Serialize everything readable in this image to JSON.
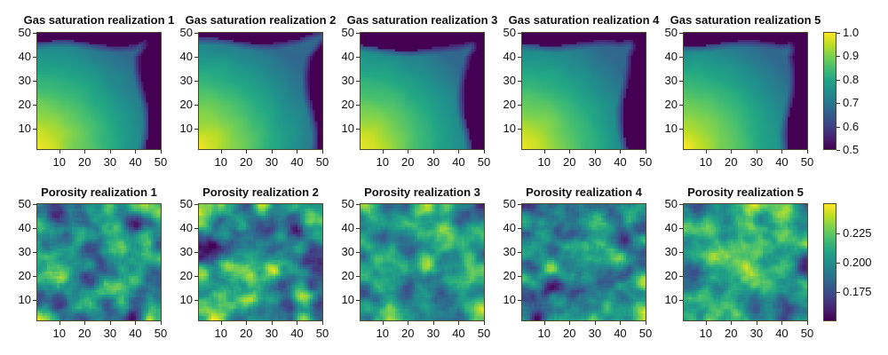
{
  "chart_data": [
    {
      "type": "heatmap",
      "row": "gas_saturation",
      "titles": [
        "Gas saturation realization 1",
        "Gas saturation realization 2",
        "Gas saturation realization 3",
        "Gas saturation realization 4",
        "Gas saturation realization 5"
      ],
      "x_ticks": [
        10,
        20,
        30,
        40,
        50
      ],
      "y_ticks": [
        10,
        20,
        30,
        40,
        50
      ],
      "xlim": [
        1,
        50
      ],
      "ylim": [
        1,
        50
      ],
      "grid_size": [
        50,
        50
      ],
      "colormap": "viridis",
      "colorbar": {
        "range": [
          0.5,
          1.0
        ],
        "ticks": [
          "0.5",
          "0.6",
          "0.7",
          "0.8",
          "0.9",
          "1.0"
        ],
        "tick_values": [
          0.5,
          0.6,
          0.7,
          0.8,
          0.9,
          1.0
        ]
      },
      "front_extent": [
        {
          "top": 46,
          "right": 44
        },
        {
          "top": 47,
          "right": 47
        },
        {
          "top": 44,
          "right": 44
        },
        {
          "top": 46,
          "right": 43
        },
        {
          "top": 46,
          "right": 44
        }
      ]
    },
    {
      "type": "heatmap",
      "row": "porosity",
      "titles": [
        "Porosity realization 1",
        "Porosity realization 2",
        "Porosity realization 3",
        "Porosity realization 4",
        "Porosity realization 5"
      ],
      "x_ticks": [
        10,
        20,
        30,
        40,
        50
      ],
      "y_ticks": [
        10,
        20,
        30,
        40,
        50
      ],
      "xlim": [
        1,
        50
      ],
      "ylim": [
        1,
        50
      ],
      "grid_size": [
        50,
        50
      ],
      "colormap": "viridis",
      "colorbar": {
        "range": [
          0.15,
          0.25
        ],
        "ticks": [
          "0.175",
          "0.200",
          "0.225"
        ],
        "tick_values": [
          0.175,
          0.2,
          0.225
        ]
      }
    }
  ]
}
